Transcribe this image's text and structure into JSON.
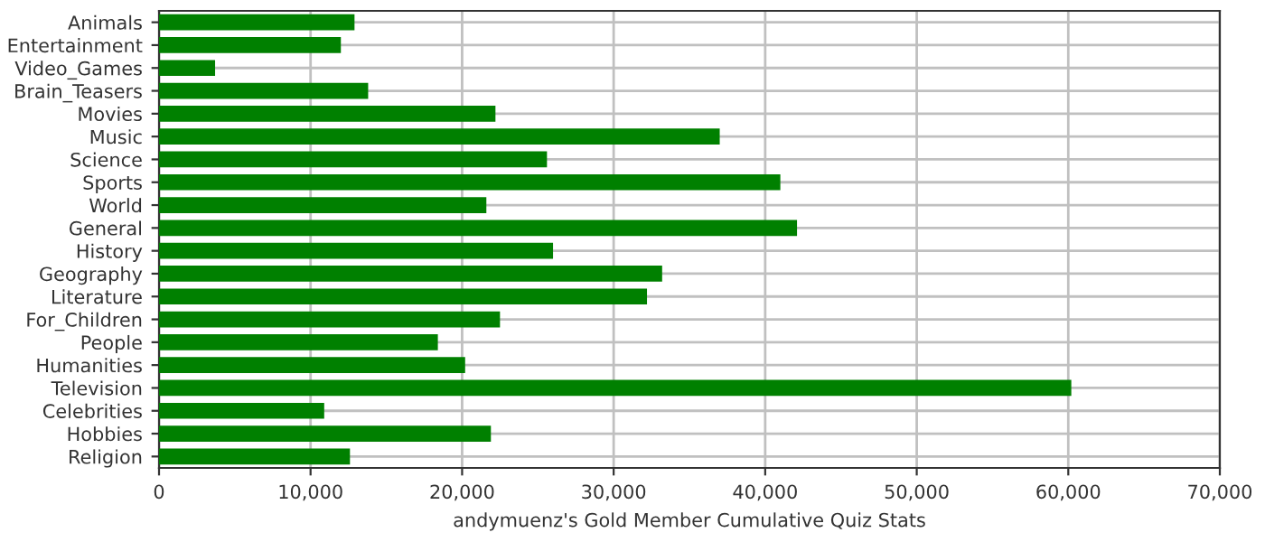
{
  "chart_data": {
    "type": "bar",
    "orientation": "horizontal",
    "xlabel": "andymuenz's Gold Member Cumulative Quiz Stats",
    "categories": [
      "Animals",
      "Entertainment",
      "Video_Games",
      "Brain_Teasers",
      "Movies",
      "Music",
      "Science",
      "Sports",
      "World",
      "General",
      "History",
      "Geography",
      "Literature",
      "For_Children",
      "People",
      "Humanities",
      "Television",
      "Celebrities",
      "Hobbies",
      "Religion"
    ],
    "values": [
      12900,
      12000,
      3700,
      13800,
      22200,
      37000,
      25600,
      41000,
      21600,
      42100,
      26000,
      33200,
      32200,
      22500,
      18400,
      20200,
      60200,
      10900,
      21900,
      12600
    ],
    "color": "#008000",
    "xlim": [
      0,
      70000
    ],
    "xticks": [
      {
        "value": 0,
        "label": "0"
      },
      {
        "value": 10000,
        "label": "10,000"
      },
      {
        "value": 20000,
        "label": "20,000"
      },
      {
        "value": 30000,
        "label": "30,000"
      },
      {
        "value": 40000,
        "label": "40,000"
      },
      {
        "value": 50000,
        "label": "50,000"
      },
      {
        "value": 60000,
        "label": "60,000"
      },
      {
        "value": 70000,
        "label": "70,000"
      }
    ],
    "grid": true
  }
}
